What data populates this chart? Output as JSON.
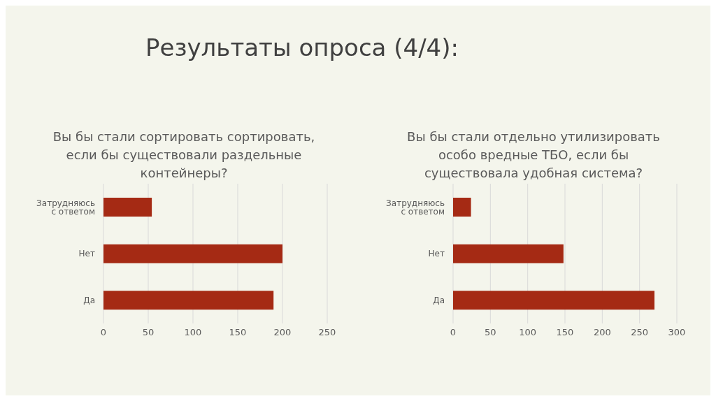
{
  "chart_data": [
    {
      "type": "other",
      "title": "Результаты опроса (4/4):"
    },
    {
      "type": "bar",
      "orientation": "horizontal",
      "title": "Вы бы стали сортировать сортировать, если бы существовали раздельные контейнеры?",
      "categories": [
        "Затрудняюсь с ответом",
        "Нет",
        "Да"
      ],
      "values": [
        54,
        200,
        190
      ],
      "color": "#a52a14",
      "xlim": [
        0,
        250
      ],
      "xticks": [
        0,
        50,
        100,
        150,
        200,
        250
      ],
      "grid": "x"
    },
    {
      "type": "bar",
      "orientation": "horizontal",
      "title": "Вы бы стали отдельно утилизировать особо вредные ТБО, если бы существовала удобная система?",
      "categories": [
        "Затрудняюсь с ответом",
        "Нет",
        "Да"
      ],
      "values": [
        24,
        148,
        270
      ],
      "color": "#a52a14",
      "xlim": [
        0,
        300
      ],
      "xticks": [
        0,
        50,
        100,
        150,
        200,
        250,
        300
      ],
      "grid": "x"
    }
  ]
}
